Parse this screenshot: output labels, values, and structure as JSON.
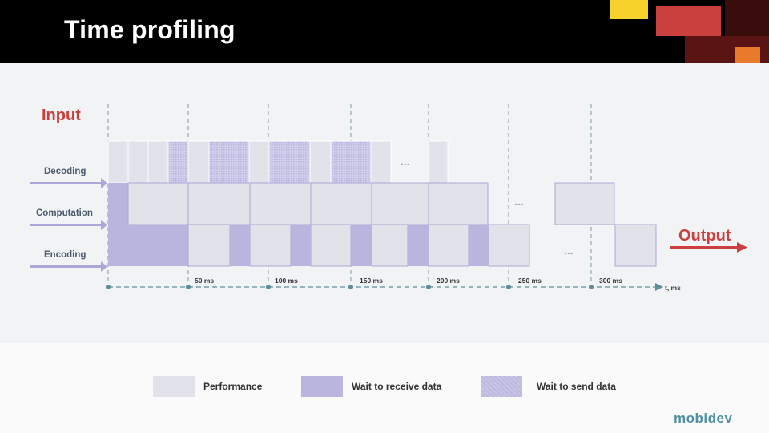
{
  "slide": {
    "title": "Time profiling"
  },
  "diagram": {
    "input_label": "Input",
    "output_label": "Output",
    "rows": [
      "Decoding",
      "Computation",
      "Encoding"
    ],
    "ellipsis": "...",
    "axis_label": "t, ms",
    "ticks": [
      "50 ms",
      "100 ms",
      "150 ms",
      "200 ms",
      "250 ms",
      "300 ms"
    ]
  },
  "legend": {
    "items": [
      {
        "label": "Performance",
        "color": "#e1e2ea"
      },
      {
        "label": "Wait to receive data",
        "color": "#b9b5de"
      },
      {
        "label": "Wait to send data",
        "color": "#c8c6e6"
      }
    ]
  },
  "colors": {
    "accent_red": "#c9403f",
    "performance": "#e1e2ea",
    "wait_receive": "#b9b5de",
    "wait_send": "#c8c6e6",
    "block_border": "#a9a8d6",
    "axis": "#5f8e9a",
    "label": "#4a5a6e"
  },
  "branding": {
    "logo_text": "mobidev"
  }
}
